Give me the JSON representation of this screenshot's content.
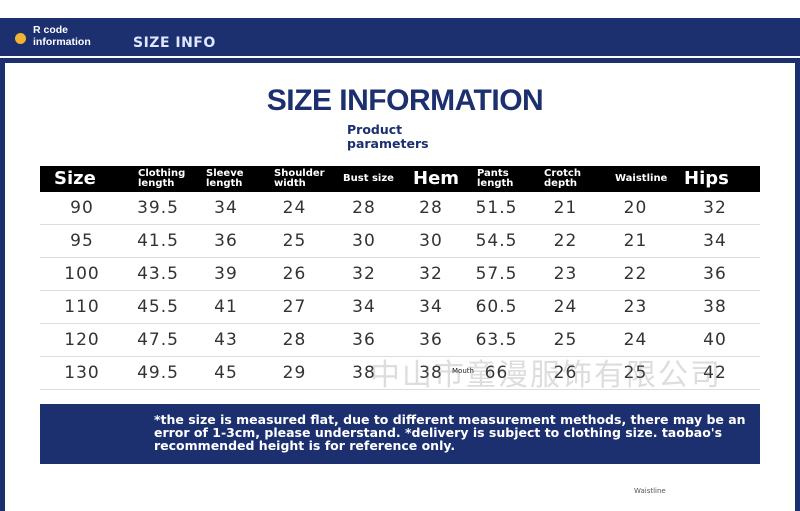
{
  "header": {
    "badge": "R code information",
    "tab": "SIZE INFO"
  },
  "title": "SIZE INFORMATION",
  "subtitle": "Product parameters",
  "table": {
    "columns": [
      "Size",
      "Clothing length",
      "Sleeve length",
      "Shoulder width",
      "Bust size",
      "Hem",
      "Pants length",
      "Crotch depth",
      "Waistline",
      "Hips"
    ],
    "rows": [
      [
        "90",
        "39.5",
        "34",
        "24",
        "28",
        "28",
        "51.5",
        "21",
        "20",
        "32"
      ],
      [
        "95",
        "41.5",
        "36",
        "25",
        "30",
        "30",
        "54.5",
        "22",
        "21",
        "34"
      ],
      [
        "100",
        "43.5",
        "39",
        "26",
        "32",
        "32",
        "57.5",
        "23",
        "22",
        "36"
      ],
      [
        "110",
        "45.5",
        "41",
        "27",
        "34",
        "34",
        "60.5",
        "24",
        "23",
        "38"
      ],
      [
        "120",
        "47.5",
        "43",
        "28",
        "36",
        "36",
        "63.5",
        "25",
        "24",
        "40"
      ],
      [
        "130",
        "49.5",
        "45",
        "29",
        "38",
        "38",
        "66",
        "26",
        "25",
        "42"
      ]
    ]
  },
  "watermark": "中山市童漫服饰有限公司",
  "tag": "Mouth",
  "note": "*the size is measured flat, due to different measurement methods, there may be an error of 1-3cm, please understand. *delivery is subject to clothing size. taobao's recommended height is for reference only.",
  "footer_label": "Waistline"
}
